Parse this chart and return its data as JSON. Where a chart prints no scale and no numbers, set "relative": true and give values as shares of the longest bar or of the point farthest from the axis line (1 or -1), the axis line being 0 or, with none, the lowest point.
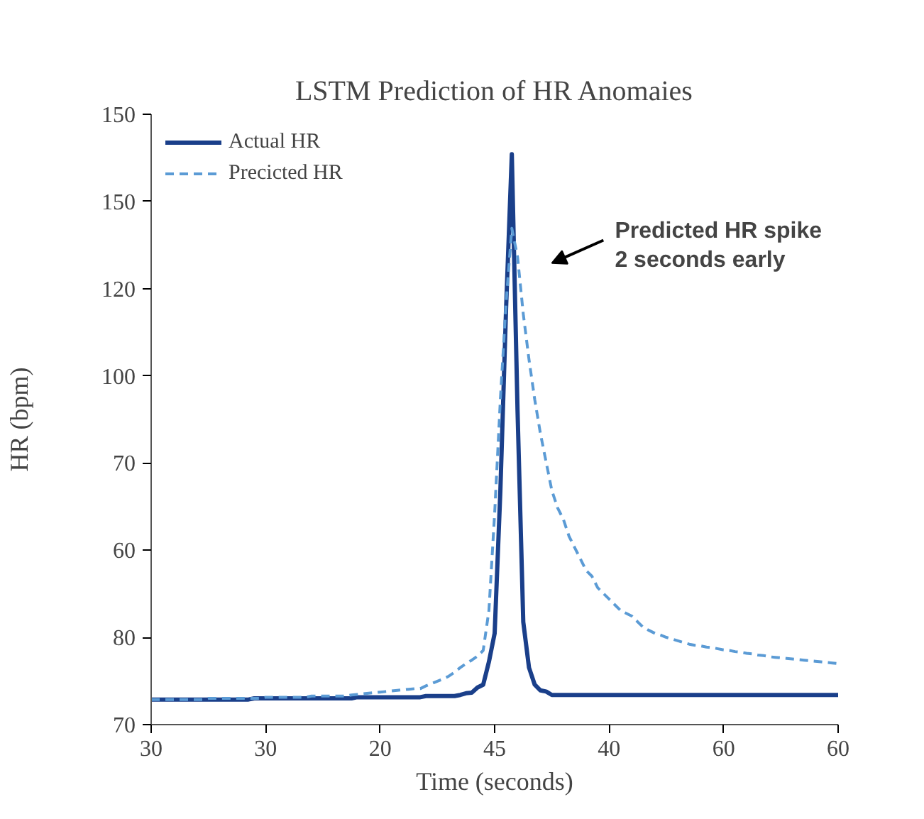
{
  "chart_data": {
    "type": "line",
    "title": "LSTM Prediction of HR Anomaies",
    "xlabel": "Time (seconds)",
    "ylabel": "HR (bpm)",
    "relative": true,
    "categories": [
      "30",
      null,
      null,
      null,
      null,
      null,
      null,
      null,
      null,
      null,
      null,
      null,
      null,
      null,
      null,
      null,
      null,
      null,
      null,
      null,
      "30",
      null,
      null,
      null,
      null,
      null,
      null,
      null,
      null,
      null,
      null,
      null,
      null,
      null,
      null,
      null,
      null,
      null,
      null,
      null,
      "20",
      null,
      null,
      null,
      null,
      null,
      null,
      null,
      null,
      null,
      null,
      null,
      null,
      null,
      null,
      null,
      null,
      null,
      null,
      null,
      "45",
      null,
      null,
      null,
      null,
      null,
      null,
      null,
      null,
      null,
      null,
      null,
      null,
      null,
      null,
      null,
      null,
      null,
      null,
      null,
      "40",
      null,
      null,
      null,
      null,
      null,
      null,
      null,
      null,
      null,
      null,
      null,
      null,
      null,
      null,
      null,
      null,
      null,
      null,
      null,
      "60",
      null,
      null,
      null,
      null,
      null,
      null,
      null,
      null,
      null,
      null,
      null,
      null,
      null,
      null,
      null,
      null,
      null,
      null,
      null,
      "60"
    ],
    "series": [
      {
        "name": "Actual HR",
        "color": "#1a3f8a",
        "line_style": "solid",
        "values": [
          0.044,
          0.044,
          0.044,
          0.044,
          0.044,
          0.044,
          0.044,
          0.044,
          0.044,
          0.044,
          0.044,
          0.044,
          0.044,
          0.044,
          0.044,
          0.044,
          0.044,
          0.044,
          0.046,
          0.046,
          0.046,
          0.046,
          0.046,
          0.046,
          0.046,
          0.046,
          0.046,
          0.046,
          0.046,
          0.046,
          0.046,
          0.046,
          0.046,
          0.046,
          0.046,
          0.046,
          0.048,
          0.048,
          0.048,
          0.048,
          0.048,
          0.048,
          0.048,
          0.048,
          0.048,
          0.048,
          0.048,
          0.048,
          0.05,
          0.05,
          0.05,
          0.05,
          0.05,
          0.05,
          0.052,
          0.055,
          0.056,
          0.065,
          0.07,
          0.11,
          0.16,
          0.41,
          0.73,
          1.0,
          0.55,
          0.18,
          0.1,
          0.07,
          0.06,
          0.058,
          0.052,
          0.052,
          0.052,
          0.052,
          0.052,
          0.052,
          0.052,
          0.052,
          0.052,
          0.052,
          0.052,
          0.052,
          0.052,
          0.052,
          0.052,
          0.052,
          0.052,
          0.052,
          0.052,
          0.052,
          0.052,
          0.052,
          0.052,
          0.052,
          0.052,
          0.052,
          0.052,
          0.052,
          0.052,
          0.052,
          0.052,
          0.052,
          0.052,
          0.052,
          0.052,
          0.052,
          0.052,
          0.052,
          0.052,
          0.052,
          0.052,
          0.052,
          0.052,
          0.052,
          0.052,
          0.052,
          0.052,
          0.052,
          0.052,
          0.052,
          0.052
        ]
      },
      {
        "name": "Precicted HR",
        "color": "#5b9bd5",
        "line_style": "dashed",
        "values": [
          0.044,
          0.044,
          0.044,
          0.044,
          0.044,
          0.044,
          0.044,
          0.044,
          0.044,
          0.044,
          0.046,
          0.046,
          0.046,
          0.046,
          0.046,
          0.046,
          0.046,
          0.046,
          0.046,
          0.046,
          0.048,
          0.048,
          0.048,
          0.048,
          0.048,
          0.048,
          0.048,
          0.048,
          0.05,
          0.05,
          0.05,
          0.05,
          0.05,
          0.05,
          0.05,
          0.052,
          0.053,
          0.054,
          0.055,
          0.056,
          0.057,
          0.058,
          0.059,
          0.06,
          0.061,
          0.062,
          0.063,
          0.063,
          0.068,
          0.072,
          0.076,
          0.08,
          0.085,
          0.092,
          0.1,
          0.107,
          0.113,
          0.12,
          0.13,
          0.2,
          0.37,
          0.57,
          0.74,
          0.87,
          0.82,
          0.72,
          0.64,
          0.57,
          0.51,
          0.46,
          0.41,
          0.38,
          0.36,
          0.33,
          0.31,
          0.29,
          0.27,
          0.26,
          0.24,
          0.23,
          0.22,
          0.21,
          0.2,
          0.195,
          0.19,
          0.18,
          0.17,
          0.165,
          0.16,
          0.157,
          0.153,
          0.15,
          0.147,
          0.144,
          0.141,
          0.139,
          0.138,
          0.136,
          0.135,
          0.133,
          0.131,
          0.13,
          0.128,
          0.127,
          0.125,
          0.124,
          0.122,
          0.121,
          0.119,
          0.118,
          0.117,
          0.116,
          0.115,
          0.114,
          0.113,
          0.112,
          0.111,
          0.11,
          0.109,
          0.108,
          0.107
        ]
      }
    ],
    "annotations": [
      "Predicted HR spike\n2 seconds early",
      "70",
      "80",
      "60",
      "70",
      "100",
      "120",
      "150",
      "150"
    ],
    "legend": "top left"
  }
}
